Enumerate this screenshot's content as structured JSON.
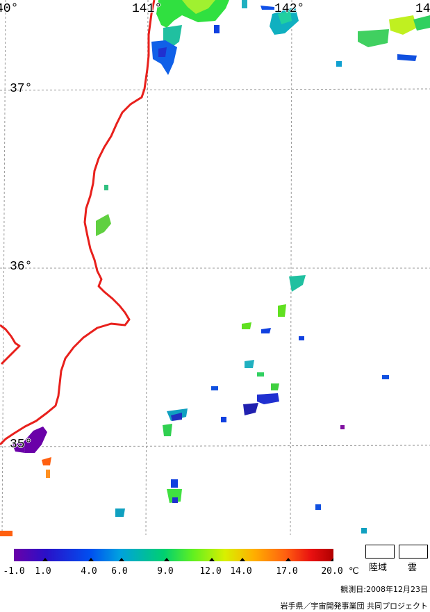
{
  "map": {
    "graticule": {
      "lat_labels": [
        "37°",
        "36°",
        "35°"
      ],
      "lon_labels": [
        "40°",
        "141°",
        "142°",
        "14"
      ]
    },
    "coastline_color": "#e8201c",
    "graticule_color": "#999999"
  },
  "colorbar": {
    "ticks": [
      "-1.0",
      "1.0",
      "4.0",
      "6.0",
      "9.0",
      "12.0",
      "14.0",
      "17.0",
      "20.0"
    ],
    "unit": "℃",
    "colors": [
      "#6a00a8",
      "#2a10c8",
      "#0050f0",
      "#00a0e0",
      "#00d070",
      "#60f020",
      "#d8f000",
      "#ffb000",
      "#ff6010",
      "#e81010",
      "#b00000"
    ]
  },
  "legend": {
    "land_label": "陸域",
    "cloud_label": "雲"
  },
  "footer": {
    "observation_date": "観測日:2008年12月23日",
    "credit": "岩手県／宇宙開発事業団 共同プロジェクト"
  }
}
